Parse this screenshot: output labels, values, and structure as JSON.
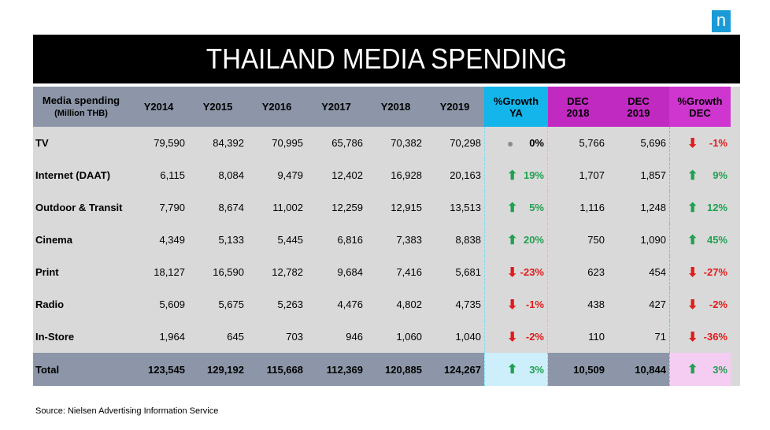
{
  "logo": "n",
  "title": "THAILAND MEDIA SPENDING",
  "source": "Source: Nielsen Advertising Information Service",
  "colors": {
    "title_bg": "#000000",
    "header_bg": "#8c96a8",
    "growth_ya_bg": "#13b5ea",
    "dec_bg": "#c12ac1",
    "up": "#1fa150",
    "down": "#e01c1c"
  },
  "chart_data": {
    "type": "table",
    "title": "THAILAND MEDIA SPENDING",
    "header": {
      "label_line1": "Media spending",
      "label_line2": "(Million THB)",
      "years": [
        "Y2014",
        "Y2015",
        "Y2016",
        "Y2017",
        "Y2018",
        "Y2019"
      ],
      "growth_ya": [
        "%Growth",
        "YA"
      ],
      "dec2018": [
        "DEC",
        "2018"
      ],
      "dec2019": [
        "DEC",
        "2019"
      ],
      "growth_dec": [
        "%Growth",
        "DEC"
      ]
    },
    "rows": [
      {
        "media": "TV",
        "values": [
          "79,590",
          "84,392",
          "70,995",
          "65,786",
          "70,382",
          "70,298"
        ],
        "growth_ya": "0%",
        "growth_ya_dir": "flat",
        "dec2018": "5,766",
        "dec2019": "5,696",
        "growth_dec": "-1%",
        "growth_dec_dir": "down"
      },
      {
        "media": "Internet (DAAT)",
        "values": [
          "6,115",
          "8,084",
          "9,479",
          "12,402",
          "16,928",
          "20,163"
        ],
        "growth_ya": "19%",
        "growth_ya_dir": "up",
        "dec2018": "1,707",
        "dec2019": "1,857",
        "growth_dec": "9%",
        "growth_dec_dir": "up"
      },
      {
        "media": "Outdoor & Transit",
        "values": [
          "7,790",
          "8,674",
          "11,002",
          "12,259",
          "12,915",
          "13,513"
        ],
        "growth_ya": "5%",
        "growth_ya_dir": "up",
        "dec2018": "1,116",
        "dec2019": "1,248",
        "growth_dec": "12%",
        "growth_dec_dir": "up"
      },
      {
        "media": "Cinema",
        "values": [
          "4,349",
          "5,133",
          "5,445",
          "6,816",
          "7,383",
          "8,838"
        ],
        "growth_ya": "20%",
        "growth_ya_dir": "up",
        "dec2018": "750",
        "dec2019": "1,090",
        "growth_dec": "45%",
        "growth_dec_dir": "up"
      },
      {
        "media": "Print",
        "values": [
          "18,127",
          "16,590",
          "12,782",
          "9,684",
          "7,416",
          "5,681"
        ],
        "growth_ya": "-23%",
        "growth_ya_dir": "down",
        "dec2018": "623",
        "dec2019": "454",
        "growth_dec": "-27%",
        "growth_dec_dir": "down"
      },
      {
        "media": "Radio",
        "values": [
          "5,609",
          "5,675",
          "5,263",
          "4,476",
          "4,802",
          "4,735"
        ],
        "growth_ya": "-1%",
        "growth_ya_dir": "down",
        "dec2018": "438",
        "dec2019": "427",
        "growth_dec": "-2%",
        "growth_dec_dir": "down"
      },
      {
        "media": "In-Store",
        "values": [
          "1,964",
          "645",
          "703",
          "946",
          "1,060",
          "1,040"
        ],
        "growth_ya": "-2%",
        "growth_ya_dir": "down",
        "dec2018": "110",
        "dec2019": "71",
        "growth_dec": "-36%",
        "growth_dec_dir": "down"
      }
    ],
    "total": {
      "media": "Total",
      "values": [
        "123,545",
        "129,192",
        "115,668",
        "112,369",
        "120,885",
        "124,267"
      ],
      "growth_ya": "3%",
      "growth_ya_dir": "up",
      "dec2018": "10,509",
      "dec2019": "10,844",
      "growth_dec": "3%",
      "growth_dec_dir": "up"
    }
  }
}
